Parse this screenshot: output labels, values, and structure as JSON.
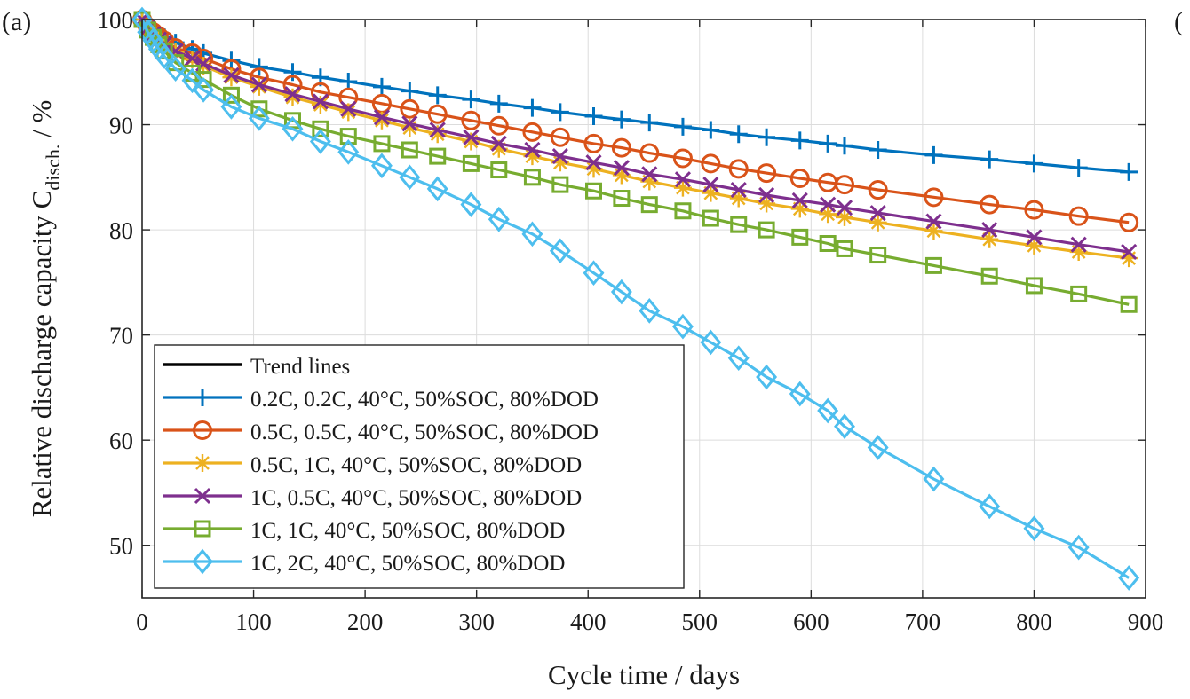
{
  "panel_label": "(a)",
  "panel_label_next": "(",
  "chart_data": {
    "type": "line",
    "title": "",
    "xlabel": "Cycle time / days",
    "ylabel_main": "Relative discharge capacity C",
    "ylabel_sub": "disch.",
    "ylabel_unit": " / %",
    "xlim": [
      0,
      900
    ],
    "ylim": [
      45,
      100
    ],
    "x_ticks": [
      0,
      100,
      200,
      300,
      400,
      500,
      600,
      700,
      800,
      900
    ],
    "y_ticks": [
      50,
      60,
      70,
      80,
      90,
      100
    ],
    "grid": true,
    "legend_position": "bottom-left",
    "legend_trend": "Trend lines",
    "series": [
      {
        "name": "0.2C, 0.2C, 40°C, 50%SOC, 80%DOD",
        "color": "#0072BD",
        "marker": "plus",
        "x": [
          0,
          5,
          10,
          15,
          20,
          30,
          45,
          55,
          80,
          105,
          135,
          160,
          185,
          215,
          240,
          265,
          295,
          320,
          350,
          375,
          405,
          430,
          455,
          485,
          510,
          535,
          560,
          590,
          615,
          630,
          660,
          710,
          760,
          800,
          840,
          885
        ],
        "y": [
          100,
          99.4,
          99.0,
          98.6,
          98.3,
          97.8,
          97.2,
          96.8,
          96.1,
          95.5,
          95.0,
          94.5,
          94.1,
          93.6,
          93.2,
          92.8,
          92.4,
          92.0,
          91.6,
          91.2,
          90.8,
          90.5,
          90.2,
          89.8,
          89.5,
          89.1,
          88.8,
          88.5,
          88.2,
          88.0,
          87.6,
          87.1,
          86.7,
          86.3,
          85.9,
          85.5
        ]
      },
      {
        "name": "0.5C, 0.5C, 40°C, 50%SOC, 80%DOD",
        "color": "#D95319",
        "marker": "circle",
        "x": [
          0,
          5,
          10,
          15,
          20,
          30,
          45,
          55,
          80,
          105,
          135,
          160,
          185,
          215,
          240,
          265,
          295,
          320,
          350,
          375,
          405,
          430,
          455,
          485,
          510,
          535,
          560,
          590,
          615,
          630,
          660,
          710,
          760,
          800,
          840,
          885
        ],
        "y": [
          100,
          99.3,
          98.8,
          98.4,
          98.0,
          97.3,
          96.8,
          96.3,
          95.3,
          94.5,
          93.8,
          93.1,
          92.6,
          92.0,
          91.5,
          91.0,
          90.4,
          89.9,
          89.3,
          88.8,
          88.2,
          87.8,
          87.3,
          86.8,
          86.3,
          85.8,
          85.4,
          84.9,
          84.5,
          84.3,
          83.8,
          83.1,
          82.4,
          81.9,
          81.3,
          80.7
        ]
      },
      {
        "name": "0.5C, 1C, 40°C, 50%SOC, 80%DOD",
        "color": "#EDB120",
        "marker": "asterisk",
        "x": [
          0,
          5,
          10,
          15,
          20,
          30,
          45,
          55,
          80,
          105,
          135,
          160,
          185,
          215,
          240,
          265,
          295,
          320,
          350,
          375,
          405,
          430,
          455,
          485,
          510,
          535,
          560,
          590,
          615,
          630,
          660,
          710,
          760,
          800,
          840,
          885
        ],
        "y": [
          100,
          99.2,
          98.6,
          98.1,
          97.6,
          96.9,
          96.2,
          95.6,
          94.5,
          93.6,
          92.6,
          91.9,
          91.2,
          90.4,
          89.7,
          89.1,
          88.4,
          87.7,
          87.0,
          86.4,
          85.8,
          85.2,
          84.6,
          84.0,
          83.5,
          83.0,
          82.5,
          82.0,
          81.5,
          81.2,
          80.7,
          79.9,
          79.1,
          78.5,
          77.9,
          77.3
        ]
      },
      {
        "name": "1C, 0.5C, 40°C, 50%SOC, 80%DOD",
        "color": "#7E2F8E",
        "marker": "cross",
        "x": [
          0,
          5,
          10,
          15,
          20,
          30,
          45,
          55,
          80,
          105,
          135,
          160,
          185,
          215,
          240,
          265,
          295,
          320,
          350,
          375,
          405,
          430,
          455,
          485,
          510,
          535,
          560,
          590,
          615,
          630,
          660,
          710,
          760,
          800,
          840,
          885
        ],
        "y": [
          100,
          99.2,
          98.6,
          98.1,
          97.7,
          97.0,
          96.3,
          95.8,
          94.7,
          93.8,
          92.9,
          92.2,
          91.5,
          90.7,
          90.1,
          89.5,
          88.8,
          88.2,
          87.6,
          87.0,
          86.4,
          85.9,
          85.3,
          84.8,
          84.3,
          83.8,
          83.3,
          82.8,
          82.4,
          82.1,
          81.6,
          80.8,
          80.0,
          79.3,
          78.6,
          77.9
        ]
      },
      {
        "name": "1C, 1C, 40°C, 50%SOC, 80%DOD",
        "color": "#77AC30",
        "marker": "square",
        "x": [
          0,
          5,
          10,
          15,
          20,
          30,
          45,
          55,
          80,
          105,
          135,
          160,
          185,
          215,
          240,
          265,
          295,
          320,
          350,
          375,
          405,
          430,
          455,
          485,
          510,
          535,
          560,
          590,
          615,
          630,
          660,
          710,
          760,
          800,
          840,
          885
        ],
        "y": [
          100,
          99.0,
          98.3,
          97.6,
          97.0,
          95.9,
          94.9,
          94.3,
          92.8,
          91.5,
          90.4,
          89.6,
          88.9,
          88.2,
          87.6,
          87.0,
          86.3,
          85.7,
          85.0,
          84.3,
          83.7,
          83.0,
          82.4,
          81.8,
          81.1,
          80.5,
          80.0,
          79.3,
          78.7,
          78.2,
          77.6,
          76.6,
          75.6,
          74.7,
          73.9,
          72.9
        ]
      },
      {
        "name": "1C, 2C, 40°C, 50%SOC, 80%DOD",
        "color": "#4DBEEE",
        "marker": "diamond",
        "x": [
          0,
          5,
          10,
          15,
          20,
          30,
          45,
          55,
          80,
          105,
          135,
          160,
          185,
          215,
          240,
          265,
          295,
          320,
          350,
          375,
          405,
          430,
          455,
          485,
          510,
          535,
          560,
          590,
          615,
          630,
          660,
          710,
          760,
          800,
          840,
          885
        ],
        "y": [
          100,
          98.8,
          98.0,
          97.2,
          96.5,
          95.3,
          94.2,
          93.3,
          91.7,
          90.6,
          89.6,
          88.4,
          87.4,
          86.1,
          85.0,
          83.9,
          82.4,
          81.0,
          79.6,
          78.0,
          75.9,
          74.1,
          72.3,
          70.8,
          69.3,
          67.8,
          66.0,
          64.4,
          62.8,
          61.3,
          59.3,
          56.3,
          53.7,
          51.6,
          49.8,
          46.9
        ]
      }
    ]
  }
}
